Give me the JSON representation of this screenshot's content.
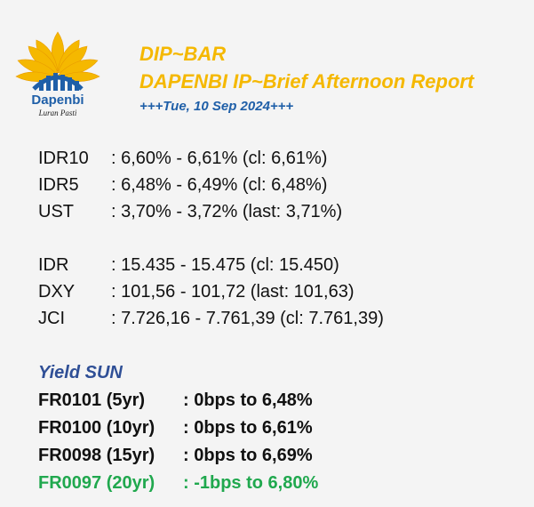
{
  "brand": {
    "logo_text": "Dapenbi",
    "logo_tagline": "Luran Pasti"
  },
  "header": {
    "title": "DIP~BAR",
    "subtitle": "DAPENBI IP~Brief Afternoon Report",
    "date": "+++Tue, 10 Sep 2024+++"
  },
  "rates": [
    {
      "label": "IDR10",
      "value": ": 6,60% - 6,61% (cl: 6,61%)"
    },
    {
      "label": "IDR5",
      "value": ": 6,48% - 6,49% (cl: 6,48%)"
    },
    {
      "label": "UST",
      "value": ": 3,70% - 3,72% (last: 3,71%)"
    }
  ],
  "markets": [
    {
      "label": "IDR",
      "value": ": 15.435 - 15.475 (cl: 15.450)"
    },
    {
      "label": "DXY",
      "value": ": 101,56 - 101,72 (last: 101,63)"
    },
    {
      "label": "JCI",
      "value": ": 7.726,16 - 7.761,39 (cl: 7.761,39)"
    }
  ],
  "yield": {
    "title": "Yield SUN",
    "rows": [
      {
        "bond": "FR0101 (5yr)",
        "change": ": 0bps to 6,48%"
      },
      {
        "bond": "FR0100 (10yr)",
        "change": ": 0bps to 6,61%"
      },
      {
        "bond": "FR0098 (15yr)",
        "change": ": 0bps to 6,69%"
      },
      {
        "bond": "FR0097 (20yr)",
        "change": ": -1bps to 6,80%"
      }
    ]
  },
  "colors": {
    "title": "#f5b800",
    "date": "#1f5fa8",
    "yield_title": "#2f4f96",
    "negative_change": "#20a84e"
  }
}
